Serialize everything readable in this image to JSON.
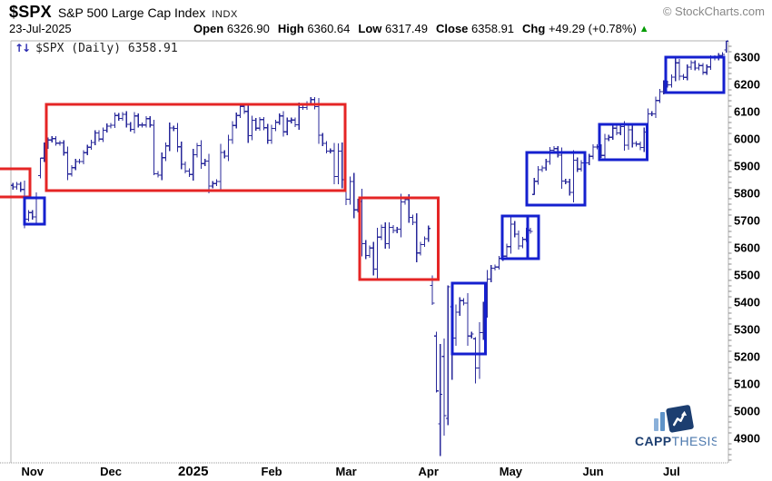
{
  "header": {
    "symbol": "$SPX",
    "name": "S&P 500 Large Cap Index",
    "exchange": "INDX",
    "copyright": "© StockCharts.com",
    "date": "23-Jul-2025",
    "quote": {
      "open_label": "Open",
      "open": "6326.90",
      "high_label": "High",
      "high": "6360.64",
      "low_label": "Low",
      "low": "6317.49",
      "close_label": "Close",
      "close": "6358.91",
      "chg_label": "Chg",
      "chg": "+49.29 (+0.78%)"
    },
    "chg_arrow": "▲"
  },
  "legend": {
    "icon_glyph": "↑↓",
    "text": "$SPX (Daily) 6358.91"
  },
  "watermark": {
    "part1": "CAPP",
    "part2": "THESIS"
  },
  "colors": {
    "bar": "#28289a",
    "red_box": "#e52525",
    "blue_box": "#1520cf",
    "frame": "#b0b0b0",
    "tick": "#888888",
    "axis_text": "#000000",
    "chg_up": "#009b00",
    "copyright": "#878787",
    "legend_icon": "#2a2ab0",
    "logo_navy": "#1c3e70",
    "logo_blue": "#4d79ae",
    "logo_bar1": "#8ab0d9",
    "logo_bar2": "#5e93c8"
  },
  "chart_data": {
    "type": "ohlc-bar",
    "title": "$SPX (Daily)",
    "last_close": 6358.91,
    "last_bar": {
      "date": "23-Jul-2025",
      "open": 6326.9,
      "high": 6360.64,
      "low": 6317.49,
      "close": 6358.91,
      "chg": 49.29,
      "chg_pct": 0.78
    },
    "ylim": [
      4800,
      6380
    ],
    "y_ticks": [
      6300,
      6200,
      6100,
      6000,
      5900,
      5800,
      5700,
      5600,
      5500,
      5400,
      5300,
      5200,
      5100,
      5000,
      4900
    ],
    "x_months": [
      {
        "label": "Nov",
        "start": 4
      },
      {
        "label": "Dec",
        "start": 24
      },
      {
        "label": "2025",
        "start": 45,
        "year": true
      },
      {
        "label": "Feb",
        "start": 65
      },
      {
        "label": "Mar",
        "start": 84
      },
      {
        "label": "Apr",
        "start": 105
      },
      {
        "label": "May",
        "start": 126
      },
      {
        "label": "Jun",
        "start": 147
      },
      {
        "label": "Jul",
        "start": 167
      }
    ],
    "closes": [
      5823,
      5833,
      5814,
      5705,
      5729,
      5713,
      5783,
      5929,
      5973,
      5996,
      6001,
      5984,
      5985,
      5949,
      5871,
      5894,
      5917,
      5917,
      5949,
      5969,
      5987,
      6022,
      5999,
      6032,
      6047,
      6050,
      6086,
      6075,
      6090,
      6053,
      6035,
      6084,
      6051,
      6051,
      6074,
      6051,
      5872,
      5867,
      5931,
      5974,
      6040,
      6038,
      5971,
      5907,
      5882,
      5869,
      5942,
      5975,
      5909,
      5918,
      5827,
      5836,
      5843,
      5950,
      5937,
      5997,
      6049,
      6086,
      6119,
      6101,
      6012,
      6068,
      6039,
      6071,
      6041,
      5995,
      6038,
      6061,
      6084,
      6026,
      6066,
      6069,
      6052,
      6115,
      6115,
      6130,
      6144,
      6118,
      6013,
      5983,
      5955,
      5956,
      5862,
      5955,
      5850,
      5778,
      5843,
      5739,
      5770,
      5615,
      5572,
      5599,
      5522,
      5639,
      5675,
      5615,
      5675,
      5663,
      5668,
      5768,
      5777,
      5712,
      5693,
      5581,
      5612,
      5633,
      5671,
      5397,
      5074,
      5062,
      4983,
      5457,
      5268,
      5363,
      5406,
      5397,
      5276,
      5283,
      5158,
      5288,
      5376,
      5485,
      5525,
      5529,
      5561,
      5569,
      5604,
      5687,
      5650,
      5607,
      5631,
      5664,
      5660,
      5844,
      5887,
      5893,
      5917,
      5958,
      5964,
      5940,
      5845,
      5842,
      5803,
      5922,
      5889,
      5912,
      5912,
      5936,
      5970,
      5971,
      5939,
      6000,
      6006,
      6039,
      6022,
      6045,
      5977,
      6033,
      5983,
      5981,
      5968,
      6025,
      6092,
      6092,
      6141,
      6173,
      6205,
      6198,
      6227,
      6279,
      6230,
      6226,
      6263,
      6280,
      6260,
      6269,
      6244,
      6264,
      6297,
      6297,
      6306,
      6310,
      6358.91
    ],
    "bar_overrides": {
      "7": [
        5865,
        5930,
        5855,
        5929
      ],
      "36": [
        6050,
        6070,
        5867,
        5872
      ],
      "107": [
        5462,
        5499,
        5390,
        5397
      ],
      "108": [
        5276,
        5292,
        5069,
        5074
      ],
      "109": [
        4953,
        5246,
        4835,
        5062
      ],
      "110": [
        5201,
        5267,
        4910,
        4983
      ],
      "111": [
        4973,
        5462,
        4948,
        5457
      ],
      "112": [
        5383,
        5406,
        5115,
        5268
      ],
      "118": [
        5266,
        5271,
        5101,
        5158
      ],
      "133": [
        5796,
        5857,
        5795,
        5844
      ],
      "182": [
        6326.9,
        6360.64,
        6317.49,
        6358.91
      ]
    },
    "annotations": [
      {
        "shape": "rect",
        "color": "red",
        "i0": -4.2,
        "i1": 4.9,
        "price_top": 5890,
        "price_bottom": 5787
      },
      {
        "shape": "rect",
        "color": "red",
        "i0": 9.0,
        "i1": 85.3,
        "price_top": 6127,
        "price_bottom": 5810
      },
      {
        "shape": "rect",
        "color": "red",
        "i0": 89.0,
        "i1": 109.0,
        "price_top": 5783,
        "price_bottom": 5483
      },
      {
        "shape": "rect",
        "color": "blue",
        "i0": 3.5,
        "i1": 8.6,
        "price_top": 5783,
        "price_bottom": 5687
      },
      {
        "shape": "rect",
        "color": "blue",
        "i0": 112.6,
        "i1": 121.0,
        "price_top": 5470,
        "price_bottom": 5210
      },
      {
        "shape": "rect",
        "color": "blue",
        "i0": 125.3,
        "i1": 134.6,
        "price_top": 5717,
        "price_bottom": 5560
      },
      {
        "shape": "line",
        "color": "blue",
        "i": 131.8,
        "price_top": 5717,
        "price_bottom": 5560
      },
      {
        "shape": "rect",
        "color": "blue",
        "i0": 131.6,
        "i1": 146.4,
        "price_top": 5950,
        "price_bottom": 5757
      },
      {
        "shape": "rect",
        "color": "blue",
        "i0": 150.1,
        "i1": 162.3,
        "price_top": 6053,
        "price_bottom": 5923
      },
      {
        "shape": "rect",
        "color": "blue",
        "i0": 167.0,
        "i1": 181.8,
        "price_top": 6300,
        "price_bottom": 6170
      }
    ]
  }
}
